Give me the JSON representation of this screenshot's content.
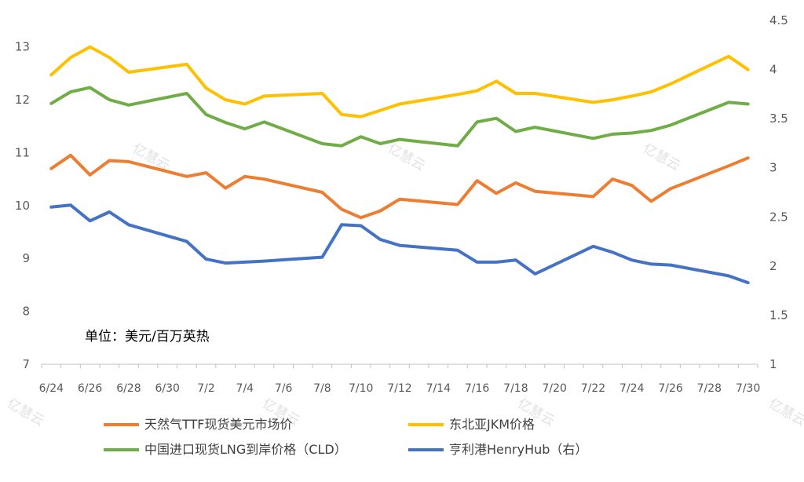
{
  "chart_data": {
    "type": "line",
    "categories": [
      "6/24",
      "6/25",
      "6/26",
      "6/27",
      "6/28",
      "6/29",
      "6/30",
      "7/1",
      "7/2",
      "7/3",
      "7/4",
      "7/5",
      "7/6",
      "7/7",
      "7/8",
      "7/9",
      "7/10",
      "7/11",
      "7/12",
      "7/13",
      "7/14",
      "7/15",
      "7/16",
      "7/17",
      "7/18",
      "7/19",
      "7/20",
      "7/21",
      "7/22",
      "7/23",
      "7/24",
      "7/25",
      "7/26",
      "7/27",
      "7/28",
      "7/29",
      "7/30"
    ],
    "x_tick_labels": [
      "6/24",
      "6/26",
      "6/28",
      "6/30",
      "7/2",
      "7/4",
      "7/6",
      "7/8",
      "7/10",
      "7/12",
      "7/14",
      "7/16",
      "7/18",
      "7/20",
      "7/22",
      "7/24",
      "7/26",
      "7/28",
      "7/30"
    ],
    "y_left": {
      "ylim": [
        7,
        13.5
      ],
      "ticks": [
        "7",
        "8",
        "9",
        "10",
        "11",
        "12",
        "13"
      ]
    },
    "y_right": {
      "ylim": [
        1,
        4.5
      ],
      "ticks": [
        "1",
        "1.5",
        "2",
        "2.5",
        "3",
        "3.5",
        "4",
        "4.5"
      ]
    },
    "series": [
      {
        "name": "天然气TTF现货美元市场价",
        "color": "#ED7D31",
        "axis": "left",
        "points": [
          [
            0,
            10.7
          ],
          [
            1,
            10.95
          ],
          [
            2,
            10.58
          ],
          [
            3,
            10.85
          ],
          [
            4,
            10.83
          ],
          [
            7,
            10.55
          ],
          [
            8,
            10.62
          ],
          [
            9,
            10.33
          ],
          [
            10,
            10.55
          ],
          [
            11,
            10.5
          ],
          [
            14,
            10.25
          ],
          [
            15,
            9.93
          ],
          [
            16,
            9.77
          ],
          [
            17,
            9.9
          ],
          [
            18,
            10.12
          ],
          [
            21,
            10.02
          ],
          [
            22,
            10.47
          ],
          [
            23,
            10.23
          ],
          [
            24,
            10.43
          ],
          [
            25,
            10.27
          ],
          [
            28,
            10.17
          ],
          [
            29,
            10.5
          ],
          [
            30,
            10.38
          ],
          [
            31,
            10.08
          ],
          [
            32,
            10.32
          ],
          [
            35,
            10.75
          ],
          [
            36,
            10.9
          ]
        ]
      },
      {
        "name": "东北亚JKM价格",
        "color": "#FFC000",
        "axis": "left",
        "points": [
          [
            0,
            12.47
          ],
          [
            1,
            12.8
          ],
          [
            2,
            13.0
          ],
          [
            3,
            12.8
          ],
          [
            4,
            12.52
          ],
          [
            7,
            12.67
          ],
          [
            8,
            12.22
          ],
          [
            9,
            12.0
          ],
          [
            10,
            11.92
          ],
          [
            11,
            12.07
          ],
          [
            14,
            12.12
          ],
          [
            15,
            11.72
          ],
          [
            16,
            11.68
          ],
          [
            17,
            11.8
          ],
          [
            18,
            11.92
          ],
          [
            21,
            12.1
          ],
          [
            22,
            12.17
          ],
          [
            23,
            12.35
          ],
          [
            24,
            12.12
          ],
          [
            25,
            12.12
          ],
          [
            28,
            11.95
          ],
          [
            29,
            12.0
          ],
          [
            30,
            12.07
          ],
          [
            31,
            12.15
          ],
          [
            32,
            12.3
          ],
          [
            35,
            12.82
          ],
          [
            36,
            12.57
          ]
        ]
      },
      {
        "name": "中国进口现货LNG到岸价格（CLD）",
        "color": "#70AD47",
        "axis": "left",
        "points": [
          [
            0,
            11.93
          ],
          [
            1,
            12.15
          ],
          [
            2,
            12.23
          ],
          [
            3,
            12.0
          ],
          [
            4,
            11.9
          ],
          [
            7,
            12.12
          ],
          [
            8,
            11.72
          ],
          [
            9,
            11.57
          ],
          [
            10,
            11.45
          ],
          [
            11,
            11.58
          ],
          [
            14,
            11.17
          ],
          [
            15,
            11.13
          ],
          [
            16,
            11.3
          ],
          [
            17,
            11.17
          ],
          [
            18,
            11.25
          ],
          [
            21,
            11.13
          ],
          [
            22,
            11.58
          ],
          [
            23,
            11.65
          ],
          [
            24,
            11.4
          ],
          [
            25,
            11.48
          ],
          [
            28,
            11.27
          ],
          [
            29,
            11.35
          ],
          [
            30,
            11.37
          ],
          [
            31,
            11.42
          ],
          [
            32,
            11.52
          ],
          [
            35,
            11.95
          ],
          [
            36,
            11.92
          ]
        ]
      },
      {
        "name": "亨利港HenryHub（右）",
        "color": "#4472C4",
        "axis": "right",
        "points": [
          [
            0,
            2.6
          ],
          [
            1,
            2.62
          ],
          [
            2,
            2.46
          ],
          [
            3,
            2.55
          ],
          [
            4,
            2.42
          ],
          [
            7,
            2.25
          ],
          [
            8,
            2.07
          ],
          [
            9,
            2.03
          ],
          [
            10,
            2.04
          ],
          [
            11,
            2.05
          ],
          [
            14,
            2.09
          ],
          [
            15,
            2.42
          ],
          [
            16,
            2.41
          ],
          [
            17,
            2.27
          ],
          [
            18,
            2.21
          ],
          [
            21,
            2.16
          ],
          [
            22,
            2.04
          ],
          [
            23,
            2.04
          ],
          [
            24,
            2.06
          ],
          [
            25,
            1.92
          ],
          [
            28,
            2.2
          ],
          [
            29,
            2.14
          ],
          [
            30,
            2.06
          ],
          [
            31,
            2.02
          ],
          [
            32,
            2.01
          ],
          [
            35,
            1.9
          ],
          [
            36,
            1.83
          ]
        ]
      }
    ],
    "legend": {
      "placement": "bottom",
      "items": [
        "天然气TTF现货美元市场价",
        "东北亚JKM价格",
        "中国进口现货LNG到岸价格（CLD）",
        "亨利港HenryHub（右）"
      ]
    },
    "annotations": {
      "unit_label": "单位：美元/百万英热"
    },
    "watermark": "亿慧云",
    "grid": false
  }
}
